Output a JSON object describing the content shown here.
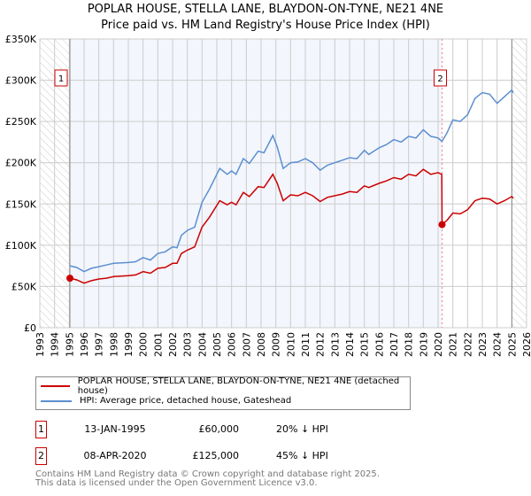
{
  "chart_data": {
    "type": "line",
    "title": "POPLAR HOUSE, STELLA LANE, BLAYDON-ON-TYNE, NE21 4NE",
    "subtitle": "Price paid vs. HM Land Registry's House Price Index (HPI)",
    "xlim": [
      1993,
      2026
    ],
    "ylim": [
      0,
      350000
    ],
    "xticks": [
      "1993",
      "1994",
      "1995",
      "1996",
      "1997",
      "1998",
      "1999",
      "2000",
      "2001",
      "2002",
      "2003",
      "2004",
      "2005",
      "2006",
      "2007",
      "2008",
      "2009",
      "2010",
      "2011",
      "2012",
      "2013",
      "2014",
      "2015",
      "2016",
      "2017",
      "2018",
      "2019",
      "2020",
      "2021",
      "2022",
      "2023",
      "2024",
      "2025",
      "2026"
    ],
    "yticks": [
      {
        "v": 0,
        "label": "£0"
      },
      {
        "v": 50000,
        "label": "£50K"
      },
      {
        "v": 100000,
        "label": "£100K"
      },
      {
        "v": 150000,
        "label": "£150K"
      },
      {
        "v": 200000,
        "label": "£200K"
      },
      {
        "v": 250000,
        "label": "£250K"
      },
      {
        "v": 300000,
        "label": "£300K"
      },
      {
        "v": 350000,
        "label": "£350K"
      }
    ],
    "grid": true,
    "series": [
      {
        "name": "POPLAR HOUSE, STELLA LANE, BLAYDON-ON-TYNE, NE21 4NE (detached house)",
        "color": "#cc0000",
        "x": [
          1995.04,
          1995.5,
          1996,
          1996.5,
          1997,
          1997.5,
          1998,
          1999,
          1999.5,
          2000,
          2000.5,
          2001,
          2001.5,
          2002,
          2002.3,
          2002.6,
          2003,
          2003.5,
          2004,
          2004.5,
          2005.2,
          2005.7,
          2006,
          2006.3,
          2006.8,
          2007.2,
          2007.8,
          2008.2,
          2008.8,
          2009.1,
          2009.5,
          2010,
          2010.5,
          2011,
          2011.5,
          2012,
          2012.5,
          2013,
          2013.5,
          2014,
          2014.5,
          2015,
          2015.3,
          2016,
          2016.5,
          2017,
          2017.5,
          2018,
          2018.5,
          2019,
          2019.5,
          2020,
          2020.25,
          2020.27,
          2020.6,
          2021,
          2021.5,
          2022,
          2022.5,
          2023,
          2023.5,
          2024,
          2024.5,
          2025,
          2025.1
        ],
        "y": [
          60000,
          58000,
          54000,
          57000,
          59000,
          60000,
          62000,
          63000,
          64000,
          68000,
          66000,
          72000,
          73000,
          78000,
          78000,
          90000,
          94000,
          98000,
          122000,
          134000,
          154000,
          149000,
          152000,
          149000,
          164000,
          159000,
          171000,
          170000,
          186000,
          175000,
          154000,
          161000,
          160000,
          164000,
          160000,
          153000,
          158000,
          160000,
          162000,
          165000,
          164000,
          172000,
          170000,
          175000,
          178000,
          182000,
          180000,
          186000,
          184000,
          192000,
          186000,
          188000,
          186000,
          125000,
          130000,
          139000,
          138000,
          143000,
          154000,
          157000,
          156000,
          150000,
          154000,
          159000,
          157000
        ]
      },
      {
        "name": "HPI: Average price, detached house, Gateshead",
        "color": "#5b8fd0",
        "x": [
          1995.04,
          1995.5,
          1996,
          1996.5,
          1997,
          1997.5,
          1998,
          1999,
          1999.5,
          2000,
          2000.5,
          2001,
          2001.5,
          2002,
          2002.3,
          2002.6,
          2003,
          2003.5,
          2004,
          2004.5,
          2005.2,
          2005.7,
          2006,
          2006.3,
          2006.8,
          2007.2,
          2007.8,
          2008.2,
          2008.8,
          2009.1,
          2009.5,
          2010,
          2010.5,
          2011,
          2011.5,
          2012,
          2012.5,
          2013,
          2013.5,
          2014,
          2014.5,
          2015,
          2015.3,
          2016,
          2016.5,
          2017,
          2017.5,
          2018,
          2018.5,
          2019,
          2019.5,
          2020,
          2020.25,
          2020.27,
          2020.6,
          2021,
          2021.5,
          2022,
          2022.5,
          2023,
          2023.5,
          2024,
          2024.5,
          2025,
          2025.1
        ],
        "y": [
          75000,
          73000,
          68000,
          72000,
          74000,
          76000,
          78000,
          79000,
          80000,
          85000,
          82000,
          90000,
          92000,
          98000,
          97000,
          112000,
          118000,
          122000,
          152000,
          168000,
          193000,
          186000,
          190000,
          186000,
          205000,
          199000,
          214000,
          212000,
          233000,
          219000,
          193000,
          200000,
          201000,
          205000,
          200000,
          191000,
          197000,
          200000,
          203000,
          206000,
          205000,
          215000,
          210000,
          218000,
          222000,
          228000,
          225000,
          232000,
          230000,
          240000,
          232000,
          230000,
          226000,
          226000,
          236000,
          252000,
          250000,
          258000,
          278000,
          285000,
          283000,
          272000,
          280000,
          288000,
          285000
        ]
      }
    ],
    "annotations": [
      {
        "label": "1",
        "x": 1995.04,
        "y": 60000
      },
      {
        "label": "2",
        "x": 2020.27,
        "y": 125000
      }
    ]
  },
  "legend": {
    "red": "POPLAR HOUSE, STELLA LANE, BLAYDON-ON-TYNE, NE21 4NE (detached house)",
    "blue": "HPI: Average price, detached house, Gateshead"
  },
  "sales": [
    {
      "num": "1",
      "date": "13-JAN-1995",
      "price": "£60,000",
      "hpi": "20% ↓ HPI"
    },
    {
      "num": "2",
      "date": "08-APR-2020",
      "price": "£125,000",
      "hpi": "45% ↓ HPI"
    }
  ],
  "footer": {
    "line1": "Contains HM Land Registry data © Crown copyright and database right 2025.",
    "line2": "This data is licensed under the Open Government Licence v3.0."
  }
}
